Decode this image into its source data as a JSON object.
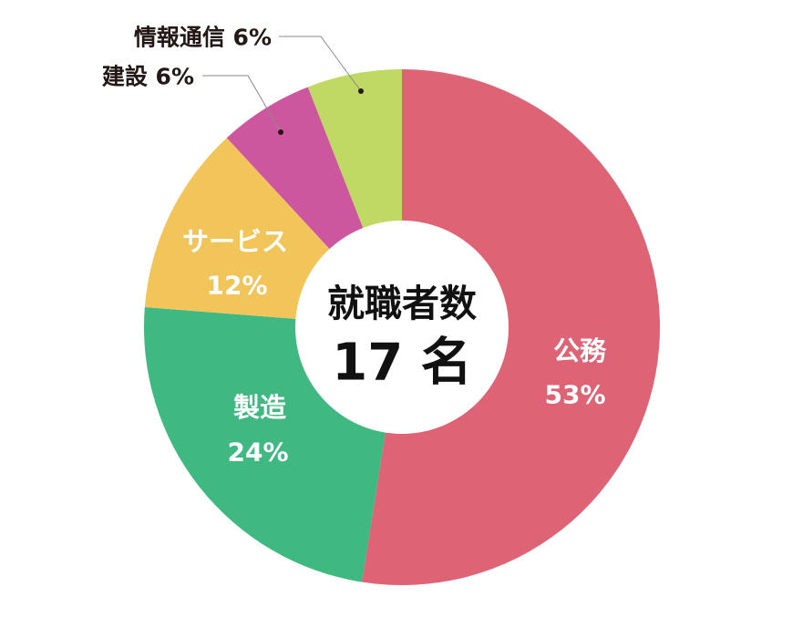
{
  "chart_data": {
    "type": "pie",
    "style": "donut",
    "title": "就職者数",
    "center_count": "17 名",
    "slices": [
      {
        "name": "公務",
        "value": 53,
        "label": "53%",
        "color": "#de6374",
        "label_placement": "inside"
      },
      {
        "name": "製造",
        "value": 24,
        "label": "24%",
        "color": "#3fb882",
        "label_placement": "inside"
      },
      {
        "name": "サービス",
        "value": 12,
        "label": "12%",
        "color": "#f2c55b",
        "label_placement": "inside"
      },
      {
        "name": "建設",
        "value": 6,
        "label": "6%",
        "color": "#cd579f",
        "label_placement": "outside"
      },
      {
        "name": "情報通信",
        "value": 6,
        "label": "6%",
        "color": "#c0d864",
        "label_placement": "outside"
      }
    ],
    "legend": "none"
  }
}
